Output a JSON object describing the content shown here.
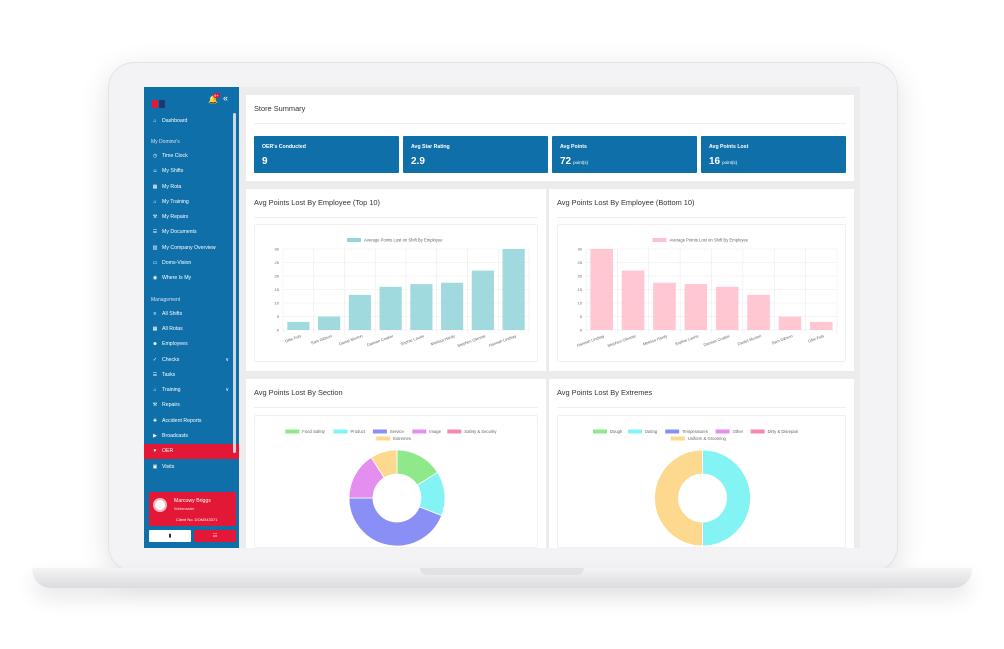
{
  "colors": {
    "sidebar": "#0f6fa9",
    "accent": "#e31837",
    "teal_bar": "#96d5da",
    "pink_bar": "#ffc1cd"
  },
  "header": {
    "notification_count": "9+"
  },
  "sidebar": {
    "top_items": [
      {
        "label": "Dashboard",
        "icon": "home-icon"
      }
    ],
    "section1": "My Domino's",
    "items1": [
      {
        "label": "Time Clock",
        "icon": "clock-icon"
      },
      {
        "label": "My Shifts",
        "icon": "user-icon"
      },
      {
        "label": "My Rota",
        "icon": "calendar-icon"
      },
      {
        "label": "My Training",
        "icon": "graduation-cap-icon"
      },
      {
        "label": "My Repairs",
        "icon": "wrench-icon"
      },
      {
        "label": "My Documents",
        "icon": "document-icon"
      },
      {
        "label": "My Company Overview",
        "icon": "building-icon"
      },
      {
        "label": "Doms-Vision",
        "icon": "monitor-icon"
      },
      {
        "label": "Where Is My",
        "icon": "location-icon"
      }
    ],
    "section2": "Management",
    "items2": [
      {
        "label": "All Shifts",
        "icon": "list-icon"
      },
      {
        "label": "All Rotas",
        "icon": "calendar-icon"
      },
      {
        "label": "Employees",
        "icon": "users-icon"
      },
      {
        "label": "Checks",
        "icon": "check-icon",
        "chevron": true
      },
      {
        "label": "Tasks",
        "icon": "tasks-icon"
      },
      {
        "label": "Training",
        "icon": "graduation-cap-icon",
        "chevron": true
      },
      {
        "label": "Repairs",
        "icon": "wrench-icon"
      },
      {
        "label": "Accident Reports",
        "icon": "first-aid-icon"
      },
      {
        "label": "Broadcasts",
        "icon": "megaphone-icon"
      },
      {
        "label": "OER",
        "icon": "heart-icon",
        "active": true
      },
      {
        "label": "Visits",
        "icon": "car-icon"
      }
    ],
    "user": {
      "name": "Marcuwy Briggs",
      "role": "Webmaster",
      "client": "Client No. DOM343371"
    }
  },
  "summary": {
    "title": "Store Summary",
    "stats": [
      {
        "label": "OER's Conducted",
        "value": "9",
        "unit": ""
      },
      {
        "label": "Avg Star Rating",
        "value": "2.9",
        "unit": ""
      },
      {
        "label": "Avg Points",
        "value": "72",
        "unit": "point(s)"
      },
      {
        "label": "Avg Points Lost",
        "value": "16",
        "unit": "point(s)"
      }
    ]
  },
  "panels": {
    "top10_title": "Avg Points Lost By Employee (Top 10)",
    "bottom10_title": "Avg Points Lost By Employee (Bottom 10)",
    "section_title": "Avg Points Lost By Section",
    "extremes_title": "Avg Points Lost By Extremes"
  },
  "chart_data": [
    {
      "type": "bar",
      "legend": "Average Points Lost on Shift By Employee",
      "categories": [
        "Ollie Fuls",
        "Sam Gibson",
        "Daniel Morton",
        "Damian Coaker",
        "Sophie Laurie",
        "Melissa Hardy",
        "Stephen Glennie",
        "Hannah Lindsay"
      ],
      "values": [
        3,
        5,
        13,
        16,
        17,
        17.5,
        22,
        30
      ],
      "ylim": [
        0,
        30
      ],
      "yticks": [
        0,
        5,
        10,
        15,
        20,
        25,
        30
      ],
      "color": "#96d5da"
    },
    {
      "type": "bar",
      "legend": "Average Points Lost on Shift By Employee",
      "categories": [
        "Hannah Lindsay",
        "Stephen Glennie",
        "Melissa Hardy",
        "Sophie Laurie",
        "Damian Coaker",
        "Daniel Morton",
        "Sam Gibson",
        "Ollie Fuls"
      ],
      "values": [
        30,
        22,
        17.5,
        17,
        16,
        13,
        5,
        3
      ],
      "ylim": [
        0,
        30
      ],
      "yticks": [
        0,
        5,
        10,
        15,
        20,
        25,
        30
      ],
      "color": "#ffc1cd"
    },
    {
      "type": "pie",
      "legend": [
        {
          "label": "Food Safety",
          "color": "#8fe88a"
        },
        {
          "label": "Product",
          "color": "#84f3f3"
        },
        {
          "label": "Service",
          "color": "#8a8ff5"
        },
        {
          "label": "Image",
          "color": "#e48ef0"
        },
        {
          "label": "Safety & Security",
          "color": "#f58aa8"
        },
        {
          "label": "Extremes",
          "color": "#fdd88f"
        }
      ],
      "values": [
        16,
        15,
        44,
        16,
        0,
        9
      ]
    },
    {
      "type": "pie",
      "legend": [
        {
          "label": "Dough",
          "color": "#8fe88a"
        },
        {
          "label": "Dating",
          "color": "#84f3f3"
        },
        {
          "label": "Temperatures",
          "color": "#8a8ff5"
        },
        {
          "label": "Other",
          "color": "#e48ef0"
        },
        {
          "label": "Dirty & Disrepair",
          "color": "#f58aa8"
        },
        {
          "label": "Uniform & Grooming",
          "color": "#fdd88f"
        }
      ],
      "values": [
        0,
        50,
        0,
        0,
        0,
        50
      ]
    }
  ]
}
